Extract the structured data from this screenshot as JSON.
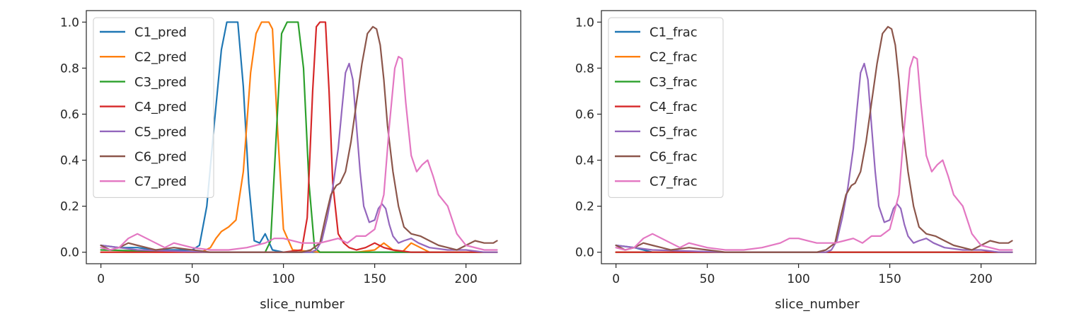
{
  "chart_data": [
    {
      "type": "line",
      "title": "",
      "xlabel": "slice_number",
      "ylabel": "",
      "xlim": [
        -8,
        230
      ],
      "ylim": [
        -0.05,
        1.05
      ],
      "xticks": [
        "0",
        "50",
        "100",
        "150",
        "200"
      ],
      "yticks": [
        "0.0",
        "0.2",
        "0.4",
        "0.6",
        "0.8",
        "1.0"
      ],
      "legend": "top-left",
      "series": [
        {
          "name": "C1_pred",
          "color": "#1f77b4",
          "x": [
            0,
            10,
            20,
            30,
            40,
            50,
            54,
            58,
            62,
            66,
            69,
            72,
            75,
            78,
            81,
            84,
            87,
            90,
            94,
            100,
            120,
            150,
            180,
            200,
            217
          ],
          "y": [
            0.03,
            0.02,
            0.02,
            0.01,
            0.01,
            0.01,
            0.03,
            0.2,
            0.55,
            0.88,
            1.0,
            1.0,
            1.0,
            0.72,
            0.3,
            0.05,
            0.04,
            0.08,
            0.01,
            0.0,
            0.0,
            0.0,
            0.0,
            0.0,
            0.0
          ]
        },
        {
          "name": "C2_pred",
          "color": "#ff7f0e",
          "x": [
            0,
            20,
            40,
            55,
            60,
            63,
            66,
            70,
            74,
            78,
            82,
            85,
            88,
            92,
            94,
            97,
            100,
            105,
            120,
            140,
            150,
            155,
            160,
            165,
            170,
            180,
            200,
            217
          ],
          "y": [
            0.0,
            0.0,
            0.0,
            0.0,
            0.02,
            0.06,
            0.09,
            0.11,
            0.14,
            0.35,
            0.78,
            0.95,
            1.0,
            1.0,
            0.97,
            0.5,
            0.1,
            0.01,
            0.0,
            0.0,
            0.01,
            0.04,
            0.01,
            0.0,
            0.04,
            0.0,
            0.0,
            0.0
          ]
        },
        {
          "name": "C3_pred",
          "color": "#2ca02c",
          "x": [
            0,
            50,
            90,
            93,
            96,
            99,
            102,
            105,
            108,
            111,
            114,
            117,
            120,
            150,
            217
          ],
          "y": [
            0.01,
            0.0,
            0.0,
            0.05,
            0.5,
            0.95,
            1.0,
            1.0,
            1.0,
            0.8,
            0.3,
            0.02,
            0.0,
            0.0,
            0.0
          ]
        },
        {
          "name": "C4_pred",
          "color": "#d62728",
          "x": [
            0,
            50,
            100,
            110,
            113,
            116,
            118,
            120,
            123,
            125,
            127,
            130,
            133,
            136,
            140,
            145,
            150,
            155,
            160,
            170,
            217
          ],
          "y": [
            0.0,
            0.0,
            0.0,
            0.01,
            0.15,
            0.7,
            0.98,
            1.0,
            1.0,
            0.7,
            0.3,
            0.08,
            0.04,
            0.02,
            0.01,
            0.02,
            0.04,
            0.02,
            0.01,
            0.0,
            0.0
          ]
        },
        {
          "name": "C5_pred",
          "color": "#9467bd",
          "x": [
            0,
            10,
            20,
            60,
            100,
            115,
            118,
            121,
            124,
            127,
            130,
            132,
            134,
            136,
            138,
            140,
            142,
            144,
            147,
            150,
            152,
            154,
            156,
            158,
            160,
            163,
            166,
            170,
            174,
            180,
            190,
            200,
            210,
            217
          ],
          "y": [
            0.03,
            0.02,
            0.01,
            0.0,
            0.0,
            0.0,
            0.01,
            0.05,
            0.15,
            0.28,
            0.45,
            0.62,
            0.78,
            0.82,
            0.75,
            0.55,
            0.35,
            0.2,
            0.13,
            0.14,
            0.19,
            0.21,
            0.19,
            0.12,
            0.07,
            0.04,
            0.05,
            0.06,
            0.04,
            0.02,
            0.01,
            0.01,
            0.0,
            0.0
          ]
        },
        {
          "name": "C6_pred",
          "color": "#8c564b",
          "x": [
            0,
            5,
            10,
            15,
            20,
            25,
            30,
            40,
            50,
            60,
            70,
            80,
            90,
            100,
            110,
            115,
            120,
            123,
            126,
            129,
            131,
            134,
            137,
            140,
            143,
            146,
            149,
            151,
            153,
            155,
            157,
            160,
            163,
            166,
            170,
            175,
            180,
            185,
            190,
            195,
            200,
            205,
            210,
            215,
            217
          ],
          "y": [
            0.03,
            0.01,
            0.02,
            0.04,
            0.03,
            0.02,
            0.01,
            0.02,
            0.01,
            0.0,
            0.0,
            0.0,
            0.0,
            0.0,
            0.0,
            0.01,
            0.04,
            0.15,
            0.25,
            0.29,
            0.3,
            0.35,
            0.48,
            0.65,
            0.82,
            0.95,
            0.98,
            0.97,
            0.9,
            0.75,
            0.55,
            0.35,
            0.2,
            0.11,
            0.08,
            0.07,
            0.05,
            0.03,
            0.02,
            0.01,
            0.03,
            0.05,
            0.04,
            0.04,
            0.05
          ]
        },
        {
          "name": "C7_pred",
          "color": "#e377c2",
          "x": [
            0,
            5,
            10,
            15,
            20,
            25,
            30,
            35,
            40,
            50,
            60,
            70,
            80,
            90,
            95,
            100,
            110,
            120,
            125,
            130,
            135,
            140,
            145,
            150,
            155,
            158,
            161,
            163,
            165,
            167,
            170,
            173,
            176,
            179,
            182,
            185,
            190,
            195,
            200,
            210,
            217
          ],
          "y": [
            0.02,
            0.01,
            0.02,
            0.06,
            0.08,
            0.06,
            0.04,
            0.02,
            0.04,
            0.02,
            0.01,
            0.01,
            0.02,
            0.04,
            0.06,
            0.06,
            0.04,
            0.04,
            0.05,
            0.06,
            0.04,
            0.07,
            0.07,
            0.1,
            0.25,
            0.55,
            0.8,
            0.85,
            0.84,
            0.65,
            0.42,
            0.35,
            0.38,
            0.4,
            0.33,
            0.25,
            0.2,
            0.08,
            0.03,
            0.01,
            0.01
          ]
        }
      ]
    },
    {
      "type": "line",
      "title": "",
      "xlabel": "slice_number",
      "ylabel": "",
      "xlim": [
        -8,
        230
      ],
      "ylim": [
        -0.05,
        1.05
      ],
      "xticks": [
        "0",
        "50",
        "100",
        "150",
        "200"
      ],
      "yticks": [
        "0.0",
        "0.2",
        "0.4",
        "0.6",
        "0.8",
        "1.0"
      ],
      "legend": "top-left",
      "series": [
        {
          "name": "C1_frac",
          "color": "#1f77b4",
          "x": [
            0,
            10,
            20,
            217
          ],
          "y": [
            0.03,
            0.02,
            0.0,
            0.0
          ]
        },
        {
          "name": "C2_frac",
          "color": "#ff7f0e",
          "x": [
            0,
            217
          ],
          "y": [
            0.0,
            0.0
          ]
        },
        {
          "name": "C3_frac",
          "color": "#2ca02c",
          "x": [
            0,
            217
          ],
          "y": [
            0.0,
            0.0
          ]
        },
        {
          "name": "C4_frac",
          "color": "#d62728",
          "x": [
            0,
            217
          ],
          "y": [
            0.0,
            0.0
          ]
        },
        {
          "name": "C5_frac",
          "color": "#9467bd",
          "x": [
            0,
            10,
            20,
            60,
            100,
            115,
            118,
            121,
            124,
            127,
            130,
            132,
            134,
            136,
            138,
            140,
            142,
            144,
            147,
            150,
            152,
            154,
            156,
            158,
            160,
            163,
            166,
            170,
            174,
            180,
            190,
            200,
            210,
            217
          ],
          "y": [
            0.03,
            0.02,
            0.01,
            0.0,
            0.0,
            0.0,
            0.01,
            0.05,
            0.15,
            0.28,
            0.45,
            0.62,
            0.78,
            0.82,
            0.75,
            0.55,
            0.35,
            0.2,
            0.13,
            0.14,
            0.19,
            0.21,
            0.19,
            0.12,
            0.07,
            0.04,
            0.05,
            0.06,
            0.04,
            0.02,
            0.01,
            0.01,
            0.0,
            0.0
          ]
        },
        {
          "name": "C6_frac",
          "color": "#8c564b",
          "x": [
            0,
            5,
            10,
            15,
            20,
            25,
            30,
            40,
            50,
            60,
            70,
            80,
            90,
            100,
            110,
            115,
            120,
            123,
            126,
            129,
            131,
            134,
            137,
            140,
            143,
            146,
            149,
            151,
            153,
            155,
            157,
            160,
            163,
            166,
            170,
            175,
            180,
            185,
            190,
            195,
            200,
            205,
            210,
            215,
            217
          ],
          "y": [
            0.03,
            0.01,
            0.02,
            0.04,
            0.03,
            0.02,
            0.01,
            0.02,
            0.01,
            0.0,
            0.0,
            0.0,
            0.0,
            0.0,
            0.0,
            0.01,
            0.04,
            0.15,
            0.25,
            0.29,
            0.3,
            0.35,
            0.48,
            0.65,
            0.82,
            0.95,
            0.98,
            0.97,
            0.9,
            0.75,
            0.55,
            0.35,
            0.2,
            0.11,
            0.08,
            0.07,
            0.05,
            0.03,
            0.02,
            0.01,
            0.03,
            0.05,
            0.04,
            0.04,
            0.05
          ]
        },
        {
          "name": "C7_frac",
          "color": "#e377c2",
          "x": [
            0,
            5,
            10,
            15,
            20,
            25,
            30,
            35,
            40,
            50,
            60,
            70,
            80,
            90,
            95,
            100,
            110,
            120,
            125,
            130,
            135,
            140,
            145,
            150,
            155,
            158,
            161,
            163,
            165,
            167,
            170,
            173,
            176,
            179,
            182,
            185,
            190,
            195,
            200,
            210,
            217
          ],
          "y": [
            0.02,
            0.01,
            0.02,
            0.06,
            0.08,
            0.06,
            0.04,
            0.02,
            0.04,
            0.02,
            0.01,
            0.01,
            0.02,
            0.04,
            0.06,
            0.06,
            0.04,
            0.04,
            0.05,
            0.06,
            0.04,
            0.07,
            0.07,
            0.1,
            0.25,
            0.55,
            0.8,
            0.85,
            0.84,
            0.65,
            0.42,
            0.35,
            0.38,
            0.4,
            0.33,
            0.25,
            0.2,
            0.08,
            0.03,
            0.01,
            0.01
          ]
        }
      ]
    }
  ]
}
